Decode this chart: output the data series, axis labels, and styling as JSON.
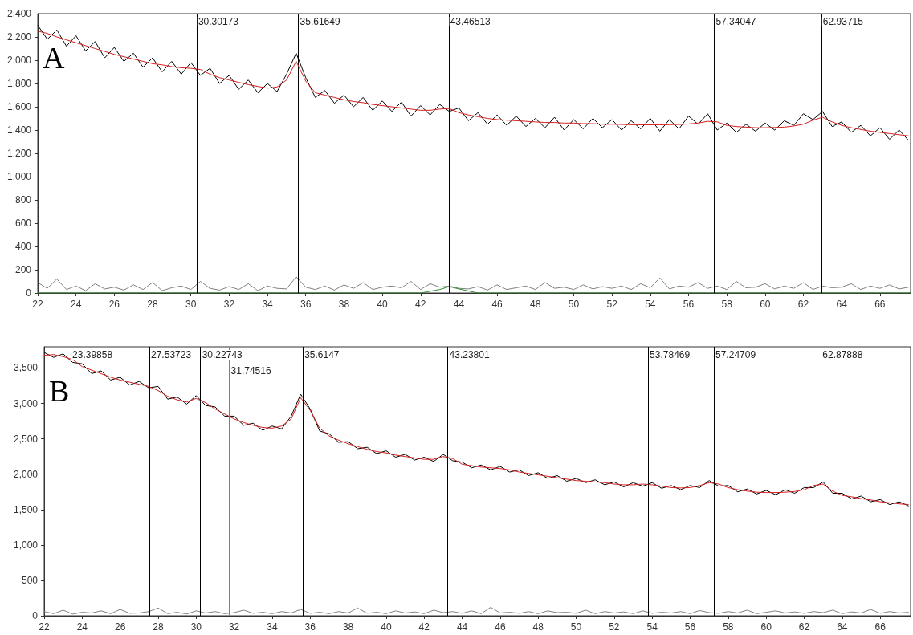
{
  "chart_data": [
    {
      "type": "line",
      "annotations": [
        "A"
      ],
      "grid": false,
      "marker": "none",
      "x": [
        22,
        22.5,
        23,
        23.5,
        24,
        24.5,
        25,
        25.5,
        26,
        26.5,
        27,
        27.5,
        28,
        28.5,
        29,
        29.5,
        30,
        30.5,
        31,
        31.5,
        32,
        32.5,
        33,
        33.5,
        34,
        34.5,
        35,
        35.5,
        36,
        36.5,
        37,
        37.5,
        38,
        38.5,
        39,
        39.5,
        40,
        40.5,
        41,
        41.5,
        42,
        42.5,
        43,
        43.5,
        44,
        44.5,
        45,
        45.5,
        46,
        46.5,
        47,
        47.5,
        48,
        48.5,
        49,
        49.5,
        50,
        50.5,
        51,
        51.5,
        52,
        52.5,
        53,
        53.5,
        54,
        54.5,
        55,
        55.5,
        56,
        56.5,
        57,
        57.5,
        58,
        58.5,
        59,
        59.5,
        60,
        60.5,
        61,
        61.5,
        62,
        62.5,
        63,
        63.5,
        64,
        64.5,
        65,
        65.5,
        66,
        66.5,
        67,
        67.5
      ],
      "xlim": [
        22,
        67.6
      ],
      "xticks": [
        22,
        24,
        26,
        28,
        30,
        32,
        34,
        36,
        38,
        40,
        42,
        44,
        46,
        48,
        50,
        52,
        54,
        56,
        58,
        60,
        62,
        64,
        66
      ],
      "ylim": [
        0,
        2400
      ],
      "yticks": [
        0,
        200,
        400,
        600,
        800,
        {
          "value": 1000,
          "label": "1,000"
        },
        {
          "value": 1200,
          "label": "1,200"
        },
        {
          "value": 1400,
          "label": "1,400"
        },
        {
          "value": 1600,
          "label": "1,600"
        },
        {
          "value": 1800,
          "label": "1,800"
        },
        {
          "value": 2000,
          "label": "2,000"
        },
        {
          "value": 2200,
          "label": "2,200"
        },
        {
          "value": 2400,
          "label": "2,400"
        }
      ],
      "series": [
        {
          "color": "#808080",
          "values": [
            90,
            40,
            120,
            30,
            60,
            20,
            80,
            35,
            50,
            25,
            70,
            30,
            90,
            20,
            45,
            60,
            30,
            100,
            40,
            25,
            55,
            30,
            80,
            20,
            60,
            40,
            35,
            140,
            50,
            30,
            60,
            25,
            70,
            40,
            90,
            30,
            50,
            60,
            45,
            100,
            30,
            80,
            50,
            60,
            40,
            35,
            55,
            25,
            70,
            30,
            45,
            60,
            30,
            90,
            40,
            50,
            30,
            70,
            35,
            55,
            40,
            60,
            30,
            80,
            45,
            130,
            35,
            60,
            50,
            90,
            40,
            60,
            30,
            100,
            45,
            50,
            80,
            35,
            60,
            40,
            90,
            30,
            60,
            45,
            50,
            80,
            30,
            60,
            40,
            70,
            35,
            50
          ]
        },
        {
          "color": "#2e8b2e",
          "x": [
            22,
            42,
            43,
            43.5,
            44,
            45,
            67.6
          ],
          "values": [
            0,
            0,
            30,
            55,
            35,
            0,
            0
          ]
        },
        {
          "color": "#000000",
          "values": [
            2300,
            2180,
            2260,
            2120,
            2210,
            2080,
            2160,
            2020,
            2110,
            1990,
            2060,
            1940,
            2020,
            1900,
            1990,
            1880,
            1980,
            1870,
            1930,
            1800,
            1870,
            1750,
            1830,
            1720,
            1800,
            1730,
            1880,
            2060,
            1850,
            1680,
            1740,
            1630,
            1700,
            1600,
            1680,
            1570,
            1650,
            1560,
            1640,
            1520,
            1610,
            1530,
            1620,
            1560,
            1590,
            1480,
            1550,
            1450,
            1530,
            1440,
            1520,
            1430,
            1500,
            1420,
            1510,
            1400,
            1490,
            1410,
            1500,
            1420,
            1490,
            1400,
            1480,
            1410,
            1500,
            1390,
            1490,
            1410,
            1520,
            1450,
            1540,
            1400,
            1460,
            1380,
            1450,
            1390,
            1460,
            1400,
            1480,
            1440,
            1540,
            1490,
            1560,
            1430,
            1470,
            1380,
            1440,
            1350,
            1420,
            1320,
            1400,
            1310
          ]
        },
        {
          "color": "#d62020",
          "values": [
            2250,
            2230,
            2200,
            2175,
            2150,
            2125,
            2100,
            2075,
            2050,
            2030,
            2010,
            1990,
            1970,
            1960,
            1945,
            1935,
            1930,
            1920,
            1880,
            1850,
            1830,
            1810,
            1790,
            1775,
            1760,
            1770,
            1830,
            1990,
            1820,
            1720,
            1700,
            1680,
            1660,
            1645,
            1635,
            1620,
            1610,
            1600,
            1590,
            1580,
            1570,
            1570,
            1580,
            1585,
            1550,
            1530,
            1515,
            1500,
            1490,
            1485,
            1480,
            1475,
            1470,
            1465,
            1465,
            1460,
            1460,
            1455,
            1455,
            1450,
            1450,
            1448,
            1446,
            1445,
            1445,
            1445,
            1446,
            1448,
            1452,
            1460,
            1475,
            1470,
            1440,
            1430,
            1425,
            1420,
            1420,
            1422,
            1425,
            1435,
            1450,
            1485,
            1510,
            1470,
            1440,
            1420,
            1405,
            1390,
            1380,
            1370,
            1360,
            1350
          ]
        }
      ],
      "ref_lines": [
        {
          "axis": "x",
          "value": 30.30173,
          "label": "30.30173",
          "color": "#000000"
        },
        {
          "axis": "x",
          "value": 35.61649,
          "label": "35.61649",
          "color": "#000000"
        },
        {
          "axis": "x",
          "value": 43.46513,
          "label": "43.46513",
          "color": "#000000"
        },
        {
          "axis": "x",
          "value": 57.34047,
          "label": "57.34047",
          "color": "#000000"
        },
        {
          "axis": "x",
          "value": 62.93715,
          "label": "62.93715",
          "color": "#000000"
        }
      ]
    },
    {
      "type": "line",
      "annotations": [
        "B"
      ],
      "grid": false,
      "marker": "none",
      "x": [
        22,
        22.5,
        23,
        23.5,
        24,
        24.5,
        25,
        25.5,
        26,
        26.5,
        27,
        27.5,
        28,
        28.5,
        29,
        29.5,
        30,
        30.5,
        31,
        31.5,
        32,
        32.5,
        33,
        33.5,
        34,
        34.5,
        35,
        35.5,
        36,
        36.5,
        37,
        37.5,
        38,
        38.5,
        39,
        39.5,
        40,
        40.5,
        41,
        41.5,
        42,
        42.5,
        43,
        43.5,
        44,
        44.5,
        45,
        45.5,
        46,
        46.5,
        47,
        47.5,
        48,
        48.5,
        49,
        49.5,
        50,
        50.5,
        51,
        51.5,
        52,
        52.5,
        53,
        53.5,
        54,
        54.5,
        55,
        55.5,
        56,
        56.5,
        57,
        57.5,
        58,
        58.5,
        59,
        59.5,
        60,
        60.5,
        61,
        61.5,
        62,
        62.5,
        63,
        63.5,
        64,
        64.5,
        65,
        65.5,
        66,
        66.5,
        67,
        67.5
      ],
      "xlim": [
        22,
        67.6
      ],
      "xticks": [
        22,
        24,
        26,
        28,
        30,
        32,
        34,
        36,
        38,
        40,
        42,
        44,
        46,
        48,
        50,
        52,
        54,
        56,
        58,
        60,
        62,
        64,
        66
      ],
      "ylim": [
        0,
        3800
      ],
      "yticks": [
        0,
        500,
        {
          "value": 1000,
          "label": "1,000"
        },
        {
          "value": 1500,
          "label": "1,500"
        },
        {
          "value": 2000,
          "label": "2,000"
        },
        {
          "value": 2500,
          "label": "2,500"
        },
        {
          "value": 3000,
          "label": "3,000"
        },
        {
          "value": 3500,
          "label": "3,500"
        }
      ],
      "series": [
        {
          "color": "#808080",
          "values": [
            60,
            30,
            80,
            25,
            50,
            40,
            70,
            30,
            90,
            35,
            40,
            60,
            110,
            30,
            50,
            25,
            70,
            40,
            60,
            30,
            45,
            80,
            35,
            50,
            30,
            60,
            40,
            90,
            35,
            50,
            30,
            60,
            40,
            110,
            35,
            50,
            30,
            70,
            40,
            55,
            30,
            80,
            45,
            60,
            35,
            70,
            30,
            120,
            40,
            50,
            35,
            60,
            30,
            70,
            45,
            50,
            35,
            80,
            30,
            60,
            40,
            55,
            30,
            70,
            35,
            50,
            40,
            60,
            30,
            75,
            45,
            35,
            60,
            40,
            80,
            30,
            50,
            70,
            40,
            55,
            35,
            60,
            45,
            80,
            30,
            55,
            40,
            90,
            35,
            60,
            40,
            50
          ]
        },
        {
          "color": "#000000",
          "values": [
            3720,
            3650,
            3700,
            3580,
            3560,
            3420,
            3460,
            3330,
            3370,
            3260,
            3310,
            3220,
            3240,
            3060,
            3090,
            2990,
            3110,
            2970,
            2950,
            2820,
            2820,
            2690,
            2720,
            2620,
            2680,
            2640,
            2820,
            3130,
            2920,
            2610,
            2570,
            2450,
            2460,
            2360,
            2380,
            2290,
            2330,
            2240,
            2280,
            2200,
            2240,
            2180,
            2280,
            2190,
            2170,
            2090,
            2130,
            2060,
            2110,
            2030,
            2060,
            1980,
            2020,
            1940,
            1980,
            1900,
            1940,
            1880,
            1920,
            1850,
            1890,
            1820,
            1880,
            1830,
            1880,
            1800,
            1840,
            1780,
            1840,
            1810,
            1910,
            1830,
            1840,
            1750,
            1790,
            1720,
            1770,
            1710,
            1780,
            1730,
            1810,
            1810,
            1890,
            1730,
            1730,
            1650,
            1690,
            1610,
            1640,
            1570,
            1610,
            1550
          ]
        },
        {
          "color": "#d62020",
          "values": [
            3680,
            3690,
            3660,
            3620,
            3520,
            3470,
            3420,
            3370,
            3330,
            3300,
            3270,
            3240,
            3180,
            3100,
            3050,
            3020,
            3070,
            3010,
            2920,
            2850,
            2780,
            2730,
            2690,
            2660,
            2650,
            2680,
            2780,
            3080,
            2900,
            2650,
            2540,
            2480,
            2430,
            2390,
            2350,
            2320,
            2300,
            2270,
            2250,
            2230,
            2210,
            2210,
            2250,
            2220,
            2140,
            2120,
            2100,
            2090,
            2080,
            2060,
            2030,
            2010,
            1990,
            1970,
            1950,
            1930,
            1910,
            1900,
            1890,
            1880,
            1860,
            1850,
            1850,
            1860,
            1850,
            1830,
            1810,
            1805,
            1810,
            1840,
            1880,
            1860,
            1810,
            1780,
            1760,
            1745,
            1740,
            1740,
            1745,
            1755,
            1780,
            1840,
            1860,
            1760,
            1700,
            1680,
            1655,
            1635,
            1610,
            1595,
            1580,
            1570
          ]
        }
      ],
      "ref_lines": [
        {
          "axis": "x",
          "value": 23.39858,
          "label": "23.39858",
          "color": "#000000"
        },
        {
          "axis": "x",
          "value": 27.53723,
          "label": "27.53723",
          "color": "#000000"
        },
        {
          "axis": "x",
          "value": 30.22743,
          "label": "30.22743",
          "color": "#000000"
        },
        {
          "axis": "x",
          "value": 31.74516,
          "label": "31.74516",
          "color": "#808080"
        },
        {
          "axis": "x",
          "value": 35.6147,
          "label": "35.6147",
          "color": "#000000"
        },
        {
          "axis": "x",
          "value": 43.23801,
          "label": "43.23801",
          "color": "#000000"
        },
        {
          "axis": "x",
          "value": 53.78469,
          "label": "53.78469",
          "color": "#000000"
        },
        {
          "axis": "x",
          "value": 57.24709,
          "label": "57.24709",
          "color": "#000000"
        },
        {
          "axis": "x",
          "value": 62.87888,
          "label": "62.87888",
          "color": "#000000"
        }
      ]
    }
  ]
}
